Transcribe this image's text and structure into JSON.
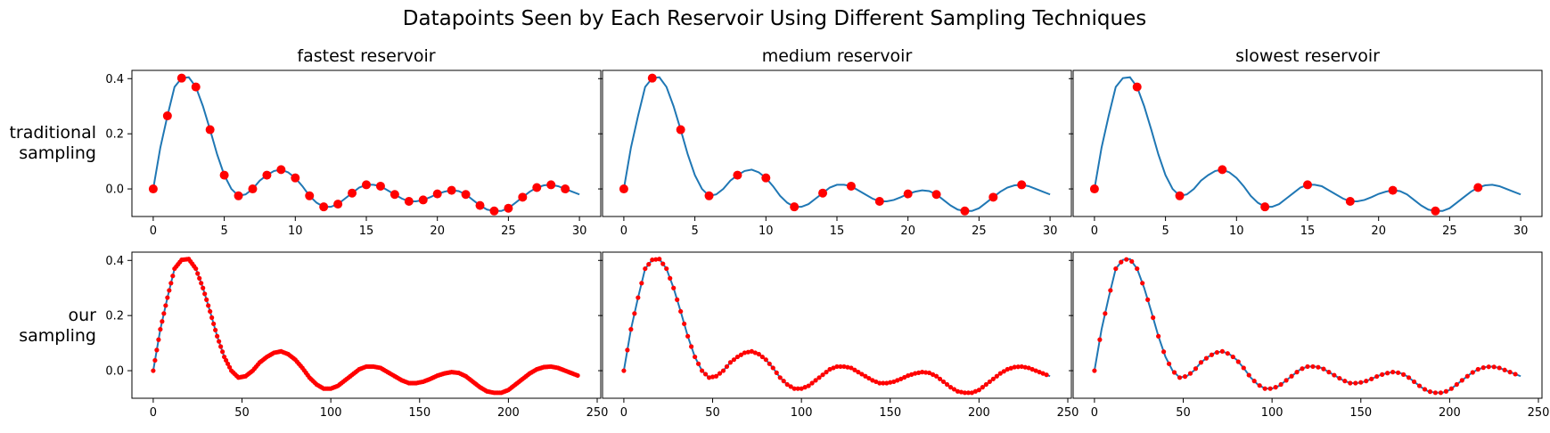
{
  "chart_data": {
    "type": "line",
    "title": "Datapoints Seen by Each Reservoir Using Different Sampling Techniques",
    "column_titles": [
      "fastest reservoir",
      "medium reservoir",
      "slowest reservoir"
    ],
    "row_labels": [
      [
        "traditional",
        "sampling"
      ],
      [
        "our",
        "sampling"
      ]
    ],
    "colors": {
      "curve": "#1f77b4",
      "points": "#ff0000"
    },
    "y_ticks": [
      0.0,
      0.2,
      0.4
    ],
    "ylim": [
      -0.1,
      0.43
    ],
    "signal": {
      "description_x_traditional": "x from 0 to 30",
      "x": [
        0,
        0.5,
        1,
        1.5,
        2,
        2.5,
        3,
        3.5,
        4,
        4.5,
        5,
        5.5,
        6,
        6.5,
        7,
        7.5,
        8,
        8.5,
        9,
        9.5,
        10,
        10.5,
        11,
        11.5,
        12,
        12.5,
        13,
        13.5,
        14,
        14.5,
        15,
        15.5,
        16,
        16.5,
        17,
        17.5,
        18,
        18.5,
        19,
        19.5,
        20,
        20.5,
        21,
        21.5,
        22,
        22.5,
        23,
        23.5,
        24,
        24.5,
        25,
        25.5,
        26,
        26.5,
        27,
        27.5,
        28,
        28.5,
        29,
        29.5,
        30
      ],
      "y": [
        0.0,
        0.15,
        0.265,
        0.37,
        0.402,
        0.405,
        0.37,
        0.3,
        0.215,
        0.125,
        0.05,
        0.0,
        -0.025,
        -0.02,
        0.0,
        0.03,
        0.05,
        0.065,
        0.07,
        0.06,
        0.04,
        0.01,
        -0.025,
        -0.05,
        -0.065,
        -0.065,
        -0.055,
        -0.035,
        -0.015,
        0.005,
        0.015,
        0.015,
        0.01,
        -0.005,
        -0.02,
        -0.035,
        -0.045,
        -0.045,
        -0.04,
        -0.03,
        -0.018,
        -0.01,
        -0.005,
        -0.008,
        -0.02,
        -0.04,
        -0.06,
        -0.075,
        -0.08,
        -0.08,
        -0.07,
        -0.05,
        -0.03,
        -0.01,
        0.005,
        0.013,
        0.015,
        0.01,
        0.0,
        -0.01,
        -0.02
      ]
    },
    "panels": [
      {
        "row": 0,
        "col": 0,
        "x_ticks": [
          0,
          5,
          10,
          15,
          20,
          25,
          30
        ],
        "xlim": [
          -1.5,
          31.5
        ],
        "step": 1,
        "x_scale": 1,
        "point_radius": 5
      },
      {
        "row": 0,
        "col": 1,
        "x_ticks": [
          0,
          5,
          10,
          15,
          20,
          25,
          30
        ],
        "xlim": [
          -1.5,
          31.5
        ],
        "step": 2,
        "x_scale": 1,
        "point_radius": 5
      },
      {
        "row": 0,
        "col": 2,
        "x_ticks": [
          0,
          5,
          10,
          15,
          20,
          25,
          30
        ],
        "xlim": [
          -1.5,
          31.5
        ],
        "step": 3,
        "x_scale": 1,
        "point_radius": 5
      },
      {
        "row": 1,
        "col": 0,
        "x_ticks": [
          0,
          50,
          100,
          150,
          200,
          250
        ],
        "xlim": [
          -12,
          252
        ],
        "step": 1,
        "x_scale": 8,
        "point_radius": 2.6
      },
      {
        "row": 1,
        "col": 1,
        "x_ticks": [
          0,
          50,
          100,
          150,
          200,
          250
        ],
        "xlim": [
          -12,
          252
        ],
        "step": 2,
        "x_scale": 8,
        "point_radius": 2.6
      },
      {
        "row": 1,
        "col": 2,
        "x_ticks": [
          0,
          50,
          100,
          150,
          200,
          250
        ],
        "xlim": [
          -12,
          252
        ],
        "step": 3,
        "x_scale": 8,
        "point_radius": 2.6
      }
    ]
  }
}
